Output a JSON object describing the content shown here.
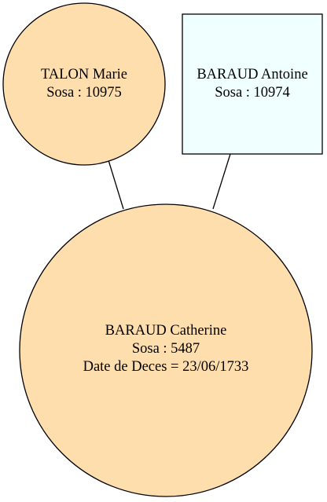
{
  "colors": {
    "female_fill": "#ffdead",
    "male_fill": "#f0ffff",
    "stroke": "#000000",
    "background": "#ffffff"
  },
  "nodes": {
    "mother": {
      "shape": "circle",
      "sex": "female",
      "name": "TALON Marie",
      "sosa": "Sosa : 10975"
    },
    "father": {
      "shape": "box",
      "sex": "male",
      "name": "BARAUD Antoine",
      "sosa": "Sosa : 10974"
    },
    "child": {
      "shape": "circle",
      "sex": "female",
      "name": "BARAUD Catherine",
      "sosa": "Sosa : 5487",
      "death": "Date de Deces = 23/06/1733"
    }
  },
  "edges": [
    {
      "from": "mother",
      "to": "child"
    },
    {
      "from": "father",
      "to": "child"
    }
  ]
}
